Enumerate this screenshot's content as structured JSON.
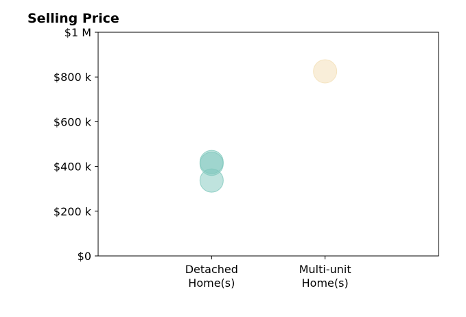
{
  "chart_data": {
    "type": "scatter",
    "title": "Selling Price",
    "xlabel": "",
    "ylabel": "",
    "categories": [
      [
        "Detached",
        "Home(s)"
      ],
      [
        "Multi-unit",
        "Home(s)"
      ]
    ],
    "xlim": [
      -1,
      2
    ],
    "ylim": [
      0,
      1000000
    ],
    "yticks": [
      0,
      200000,
      400000,
      600000,
      800000,
      1000000
    ],
    "ytick_labels": [
      "$0",
      "$200 k",
      "$400 k",
      "$600 k",
      "$800 k",
      "$1 M"
    ],
    "grid": false,
    "points": [
      {
        "category_index": 0,
        "value": 420000,
        "color": "#7fc8bd"
      },
      {
        "category_index": 0,
        "value": 412000,
        "color": "#7fc8bd"
      },
      {
        "category_index": 0,
        "value": 337000,
        "color": "#7fc8bd"
      },
      {
        "category_index": 1,
        "value": 825000,
        "color": "#f3deb4"
      }
    ],
    "colors": {
      "detached": "#7fc8bd",
      "multi_unit": "#f3deb4"
    }
  }
}
